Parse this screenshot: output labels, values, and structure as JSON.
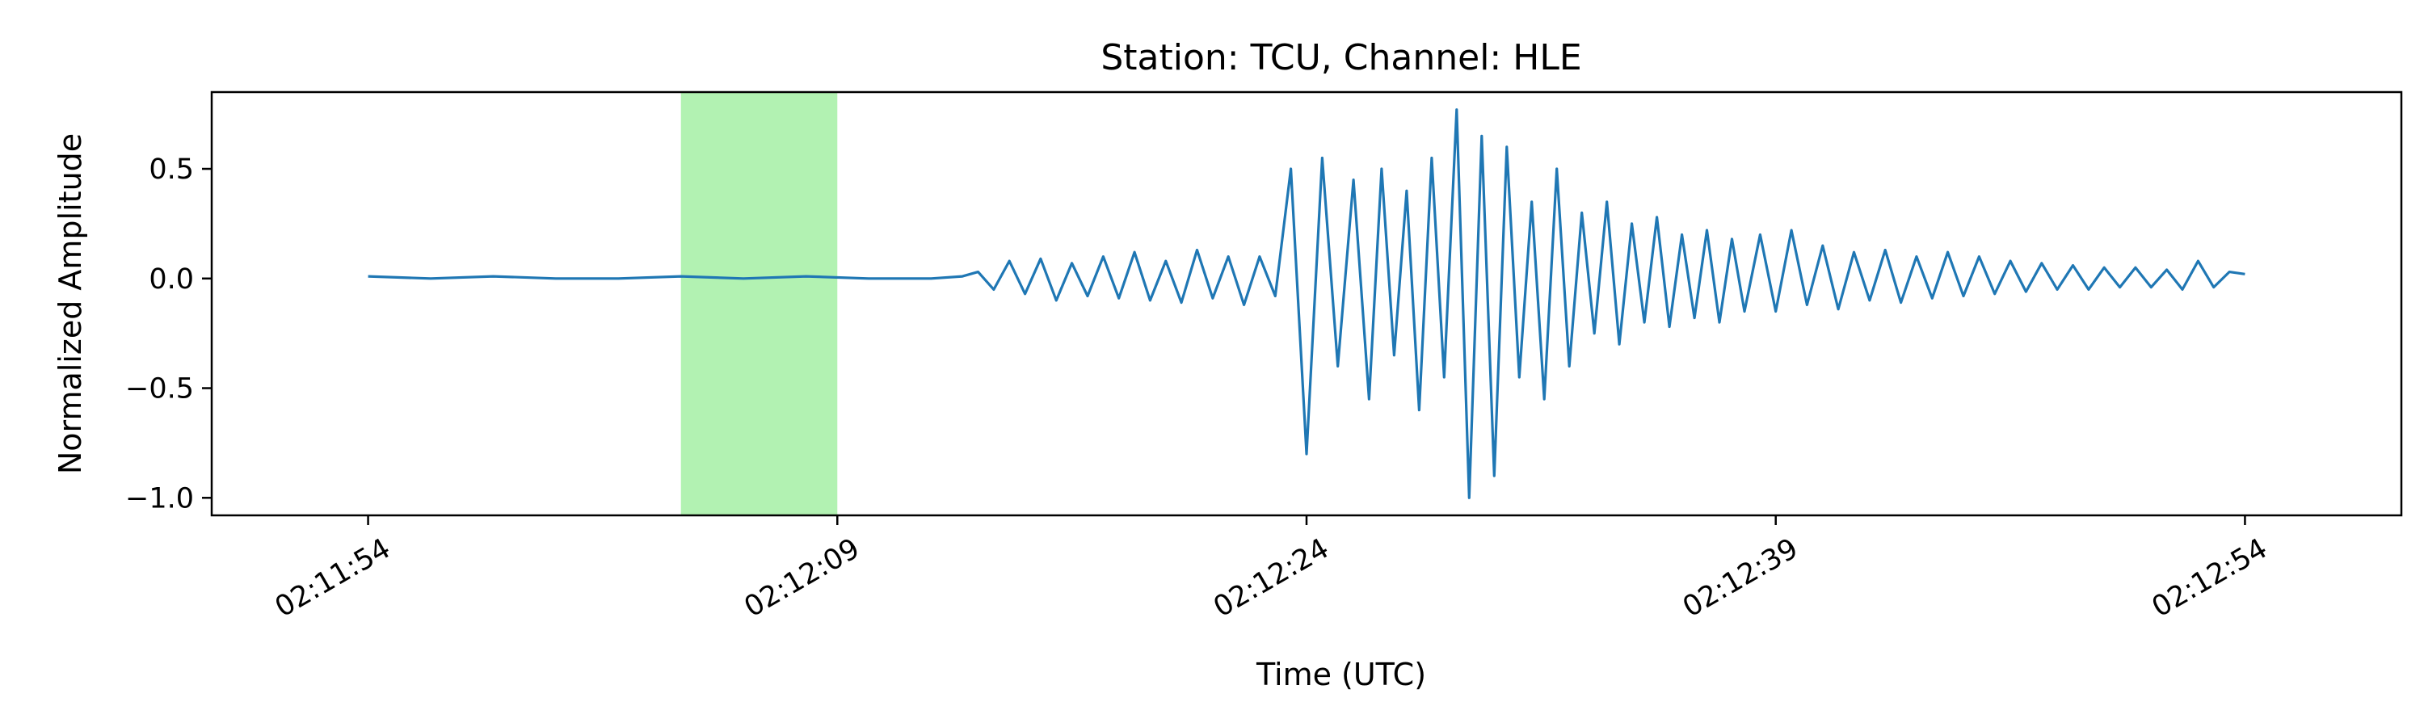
{
  "chart_data": {
    "type": "line",
    "title": "Station: TCU, Channel: HLE",
    "xlabel": "Time (UTC)",
    "ylabel": "Normalized Amplitude",
    "x_unit": "seconds",
    "xlim": [
      -5,
      65
    ],
    "ylim": [
      -1.08,
      0.85
    ],
    "grid": false,
    "legend": "none",
    "x_ticks": [
      {
        "value": 0,
        "label": "02:11:54"
      },
      {
        "value": 15,
        "label": "02:12:09"
      },
      {
        "value": 30,
        "label": "02:12:24"
      },
      {
        "value": 45,
        "label": "02:12:39"
      },
      {
        "value": 60,
        "label": "02:12:54"
      }
    ],
    "y_ticks": [
      {
        "value": 0.5,
        "label": "0.5"
      },
      {
        "value": 0.0,
        "label": "0.0"
      },
      {
        "value": -0.5,
        "label": "−0.5"
      },
      {
        "value": -1.0,
        "label": "−1.0"
      }
    ],
    "highlight_span": {
      "x_start": 10,
      "x_end": 15,
      "color": "#b2f2b2"
    },
    "series": [
      {
        "color": "#1f77b4",
        "x": [
          0,
          2,
          4,
          6,
          8,
          10,
          12,
          14,
          16,
          18,
          19.0,
          19.5,
          20.0,
          20.5,
          21.0,
          21.5,
          22.0,
          22.5,
          23.0,
          23.5,
          24.0,
          24.5,
          25.0,
          25.5,
          26.0,
          26.5,
          27.0,
          27.5,
          28.0,
          28.5,
          29.0,
          29.5,
          30.0,
          30.5,
          31.0,
          31.5,
          32.0,
          32.4,
          32.8,
          33.2,
          33.6,
          34.0,
          34.4,
          34.8,
          35.2,
          35.6,
          36.0,
          36.4,
          36.8,
          37.2,
          37.6,
          38.0,
          38.4,
          38.8,
          39.2,
          39.6,
          40.0,
          40.4,
          40.8,
          41.2,
          41.6,
          42.0,
          42.4,
          42.8,
          43.2,
          43.6,
          44.0,
          44.5,
          45.0,
          45.5,
          46.0,
          46.5,
          47.0,
          47.5,
          48.0,
          48.5,
          49.0,
          49.5,
          50.0,
          50.5,
          51.0,
          51.5,
          52.0,
          52.5,
          53.0,
          53.5,
          54.0,
          54.5,
          55.0,
          55.5,
          56.0,
          56.5,
          57.0,
          57.5,
          58.0,
          58.5,
          59.0,
          59.5,
          60.0
        ],
        "y": [
          0.01,
          0.0,
          0.01,
          0.0,
          0.0,
          0.01,
          0.0,
          0.01,
          0.0,
          0.0,
          0.01,
          0.03,
          -0.05,
          0.08,
          -0.07,
          0.09,
          -0.1,
          0.07,
          -0.08,
          0.1,
          -0.09,
          0.12,
          -0.1,
          0.08,
          -0.11,
          0.13,
          -0.09,
          0.1,
          -0.12,
          0.1,
          -0.08,
          0.5,
          -0.8,
          0.55,
          -0.4,
          0.45,
          -0.55,
          0.5,
          -0.35,
          0.4,
          -0.6,
          0.55,
          -0.45,
          0.77,
          -1.0,
          0.65,
          -0.9,
          0.6,
          -0.45,
          0.35,
          -0.55,
          0.5,
          -0.4,
          0.3,
          -0.25,
          0.35,
          -0.3,
          0.25,
          -0.2,
          0.28,
          -0.22,
          0.2,
          -0.18,
          0.22,
          -0.2,
          0.18,
          -0.15,
          0.2,
          -0.15,
          0.22,
          -0.12,
          0.15,
          -0.14,
          0.12,
          -0.1,
          0.13,
          -0.11,
          0.1,
          -0.09,
          0.12,
          -0.08,
          0.1,
          -0.07,
          0.08,
          -0.06,
          0.07,
          -0.05,
          0.06,
          -0.05,
          0.05,
          -0.04,
          0.05,
          -0.04,
          0.04,
          -0.05,
          0.08,
          -0.04,
          0.03,
          0.02
        ]
      }
    ]
  }
}
